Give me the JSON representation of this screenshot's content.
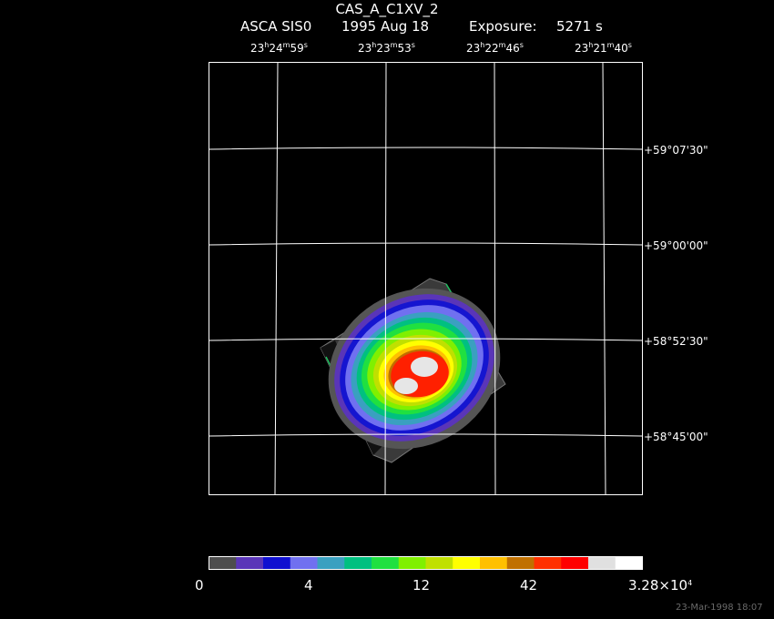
{
  "title": "CAS_A_C1XV_2",
  "subtitle": {
    "instrument": "ASCA SIS0",
    "date": "1995 Aug 18",
    "exposure_label": "Exposure:",
    "exposure_value": "5271 s"
  },
  "ra_labels": [
    {
      "h": "23",
      "m": "24",
      "s": "59"
    },
    {
      "h": "23",
      "m": "23",
      "s": "53"
    },
    {
      "h": "23",
      "m": "22",
      "s": "46"
    },
    {
      "h": "23",
      "m": "21",
      "s": "40"
    }
  ],
  "dec_labels": [
    "+59°07'30\"",
    "+59°00'00\"",
    "+58°52'30\"",
    "+58°45'00\""
  ],
  "colorbar": {
    "colors": [
      "#4d4d4d",
      "#5a35b8",
      "#1010d0",
      "#7070f0",
      "#3aa0c0",
      "#00c080",
      "#20e040",
      "#80f000",
      "#c0e000",
      "#ffff00",
      "#ffc000",
      "#c07000",
      "#ff3000",
      "#ff0000",
      "#e0e0e0",
      "#ffffff"
    ],
    "labels": [
      "0",
      "4",
      "12",
      "42"
    ],
    "max_label": {
      "mantissa": "3.28×10",
      "exponent": "4"
    }
  },
  "timestamp": "23-Mar-1998 18:07"
}
